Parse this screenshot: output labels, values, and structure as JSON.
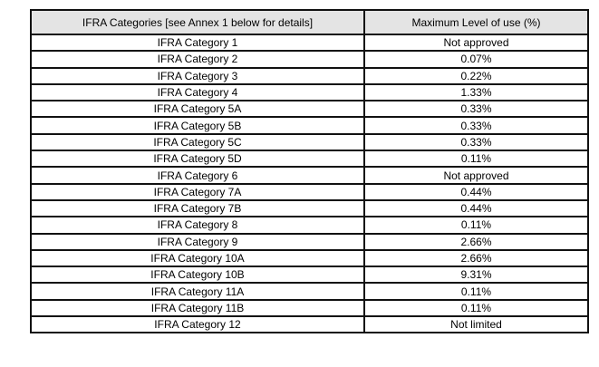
{
  "colors": {
    "header_bg": "#e4e4e4",
    "border": "#111111",
    "text": "#000000",
    "page_bg": "#ffffff"
  },
  "table": {
    "headers": [
      "IFRA Categories [see Annex 1 below for details]",
      "Maximum Level of use (%)"
    ],
    "rows": [
      {
        "category": "IFRA Category 1",
        "max_level": "Not approved"
      },
      {
        "category": "IFRA Category 2",
        "max_level": "0.07%"
      },
      {
        "category": "IFRA Category 3",
        "max_level": "0.22%"
      },
      {
        "category": "IFRA Category 4",
        "max_level": "1.33%"
      },
      {
        "category": "IFRA Category 5A",
        "max_level": "0.33%"
      },
      {
        "category": "IFRA Category 5B",
        "max_level": "0.33%"
      },
      {
        "category": "IFRA Category 5C",
        "max_level": "0.33%"
      },
      {
        "category": "IFRA Category 5D",
        "max_level": "0.11%"
      },
      {
        "category": "IFRA Category 6",
        "max_level": "Not approved"
      },
      {
        "category": "IFRA Category 7A",
        "max_level": "0.44%"
      },
      {
        "category": "IFRA Category 7B",
        "max_level": "0.44%"
      },
      {
        "category": "IFRA Category 8",
        "max_level": "0.11%"
      },
      {
        "category": "IFRA Category 9",
        "max_level": "2.66%"
      },
      {
        "category": "IFRA Category 10A",
        "max_level": "2.66%"
      },
      {
        "category": "IFRA Category 10B",
        "max_level": "9.31%"
      },
      {
        "category": "IFRA Category 11A",
        "max_level": "0.11%"
      },
      {
        "category": "IFRA Category 11B",
        "max_level": "0.11%"
      },
      {
        "category": "IFRA Category 12",
        "max_level": "Not limited"
      }
    ]
  }
}
